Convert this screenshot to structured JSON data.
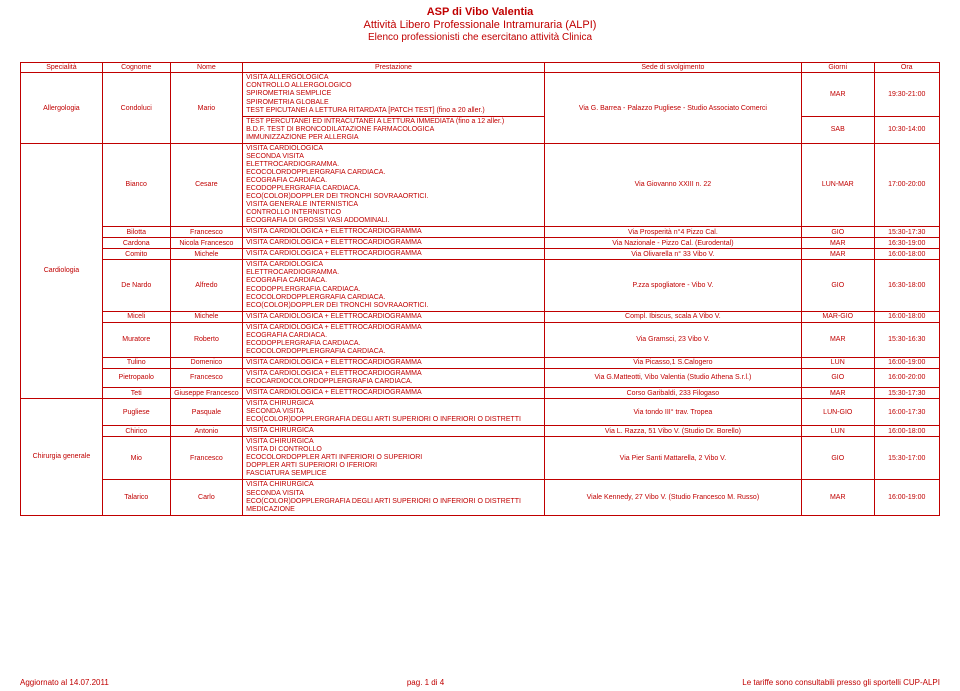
{
  "colors": {
    "text": "#c00000",
    "border": "#c00000",
    "background": "#ffffff"
  },
  "typography": {
    "font_family": "Arial",
    "header_size_pt": 11,
    "cell_size_pt": 7
  },
  "header": {
    "line1": "ASP di Vibo Valentia",
    "line2": "Attività Libero Professionale Intramuraria (ALPI)",
    "line3": "Elenco professionisti che esercitano attività Clinica"
  },
  "columns": [
    "Specialità",
    "Cognome",
    "Nome",
    "Prestazione",
    "Sede di svolgimento",
    "Giorni",
    "Ora"
  ],
  "rows": [
    {
      "spec": "Allergologia",
      "spec_span": 2,
      "cog": "Condoluci",
      "cog_span": 2,
      "nome": "Mario",
      "nome_span": 2,
      "prest": "VISITA ALLERGOLOGICA\nCONTROLLO ALLERGOLOGICO\nSPIROMETRIA SEMPLICE\nSPIROMETRIA GLOBALE\nTEST EPICUTANEI A LETTURA RITARDATA [PATCH TEST] (fino a 20 aller.)",
      "sede": "Via G. Barrea - Palazzo Pugliese - Studio Associato Comerci",
      "sede_span": 2,
      "giorni": "MAR",
      "ora": "19:30-21:00"
    },
    {
      "prest": "TEST PERCUTANEI ED INTRACUTANEI A LETTURA IMMEDIATA (fino a 12 aller.)\nB.D.F. TEST DI BRONCODILATAZIONE FARMACOLOGICA\nIMMUNIZZAZIONE PER ALLERGIA",
      "giorni": "SAB",
      "ora": "10:30-14:00"
    },
    {
      "spec": "Cardiologia",
      "spec_span": 10,
      "cog": "Bianco",
      "nome": "Cesare",
      "prest": "VISITA CARDIOLOGICA\nSECONDA VISITA\nELETTROCARDIOGRAMMA.\nECOCOLORDOPPLERGRAFIA CARDIACA.\nECOGRAFIA CARDIACA.\nECODOPPLERGRAFIA CARDIACA.\nECO(COLOR)DOPPLER DEI TRONCHI SOVRAAORTICI.\nVISITA GENERALE INTERNISTICA\nCONTROLLO INTERNISTICO\nECOGRAFIA DI GROSSI VASI ADDOMINALI.",
      "sede": "Via Giovanno XXIII n. 22",
      "giorni": "LUN-MAR",
      "ora": "17:00-20:00"
    },
    {
      "cog": "Bilotta",
      "nome": "Francesco",
      "prest": "VISITA CARDIOLOGICA + ELETTROCARDIOGRAMMA",
      "sede": "Via Prosperità n°4 Pizzo Cal.",
      "giorni": "GIO",
      "ora": "15:30-17:30"
    },
    {
      "cog": "Cardona",
      "nome": "Nicola Francesco",
      "prest": "VISITA CARDIOLOGICA + ELETTROCARDIOGRAMMA",
      "sede": "Via Nazionale - Pizzo Cal. (Eurodental)",
      "giorni": "MAR",
      "ora": "16:30-19:00"
    },
    {
      "cog": "Comito",
      "nome": "Michele",
      "prest": "VISITA CARDIOLOGICA + ELETTROCARDIOGRAMMA",
      "sede": "Via Olivarella n° 33 Vibo V.",
      "giorni": "MAR",
      "ora": "16:00-18:00"
    },
    {
      "cog": "De Nardo",
      "nome": "Alfredo",
      "prest": "VISITA CARDIOLOGICA\nELETTROCARDIOGRAMMA.\nECOGRAFIA CARDIACA.\nECODOPPLERGRAFIA CARDIACA.\nECOCOLORDOPPLERGRAFIA CARDIACA.\nECO(COLOR)DOPPLER DEI TRONCHI SOVRAAORTICI.",
      "sede": "P.zza spogliatore - Vibo V.",
      "giorni": "GIO",
      "ora": "16:30-18:00"
    },
    {
      "cog": "Miceli",
      "nome": "Michele",
      "prest": "VISITA CARDIOLOGICA + ELETTROCARDIOGRAMMA",
      "sede": "Compl. Ibiscus, scala A  Vibo V.",
      "giorni": "MAR-GIO",
      "ora": "16:00-18:00"
    },
    {
      "cog": "Muratore",
      "nome": "Roberto",
      "prest": "VISITA CARDIOLOGICA + ELETTROCARDIOGRAMMA\nECOGRAFIA CARDIACA.\nECODOPPLERGRAFIA CARDIACA.\nECOCOLORDOPPLERGRAFIA CARDIACA.",
      "sede": "Via Gramsci, 23  Vibo V.",
      "giorni": "MAR",
      "ora": "15:30-16:30"
    },
    {
      "cog": "Tulino",
      "nome": "Domenico",
      "prest": "VISITA CARDIOLOGICA + ELETTROCARDIOGRAMMA",
      "sede": "Via Picasso,1  S.Calogero",
      "giorni": "LUN",
      "ora": "16:00-19:00"
    },
    {
      "cog": "Pietropaolo",
      "nome": "Francesco",
      "prest": "VISITA CARDIOLOGICA + ELETTROCARDIOGRAMMA\nECOCARDIOCOLORDOPPLERGRAFIA CARDIACA.",
      "sede": "Via G.Matteotti, Vibo Valentia (Studio Athena S.r.l.)",
      "giorni": "GIO",
      "ora": "16:00-20:00"
    },
    {
      "cog": "Teti",
      "nome": "Giuseppe Francesco",
      "prest": "VISITA CARDIOLOGICA + ELETTROCARDIOGRAMMA",
      "sede": "Corso Garibaldi, 233  Filogaso",
      "giorni": "MAR",
      "ora": "15:30-17:30"
    },
    {
      "spec": "Chirurgia generale",
      "spec_span": 4,
      "cog": "Pugliese",
      "nome": "Pasquale",
      "prest": "VISITA CHIRURGICA\nSECONDA VISITA\nECO(COLOR)DOPPLERGRAFIA DEGLI ARTI SUPERIORI O INFERIORI O DISTRETTI",
      "sede": "Via tondo III° trav.  Tropea",
      "giorni": "LUN-GIO",
      "ora": "16:00-17:30"
    },
    {
      "cog": "Chirico",
      "nome": "Antonio",
      "prest": "VISITA CHIRURGICA",
      "sede": "Via L. Razza, 51 Vibo V. (Studio Dr. Borello)",
      "giorni": "LUN",
      "ora": "16:00-18:00"
    },
    {
      "cog": "Mio",
      "nome": "Francesco",
      "prest": "VISITA CHIRURGICA\nVISITA DI CONTROLLO\nECOCOLORDOPPLER ARTI INFERIORI O SUPERIORI\nDOPPLER ARTI SUPERIORI O IFERIORI\nFASCIATURA SEMPLICE",
      "sede": "Via Pier Santi Mattarella, 2 Vibo V.",
      "giorni": "GIO",
      "ora": "15:30-17:00"
    },
    {
      "cog": "Talarico",
      "nome": "Carlo",
      "prest": "VISITA CHIRURGICA\nSECONDA VISITA\nECO(COLOR)DOPPLERGRAFIA DEGLI ARTI SUPERIORI O INFERIORI O DISTRETTI\nMEDICAZIONE",
      "sede": "Viale Kennedy, 27  Vibo V. (Studio Francesco M. Russo)",
      "giorni": "MAR",
      "ora": "16:00-19:00"
    }
  ],
  "footer": {
    "left": "Aggiornato al 14.07.2011",
    "center": "pag. 1 di 4",
    "right": "Le tariffe sono consultabili presso gli sportelli CUP-ALPI"
  }
}
